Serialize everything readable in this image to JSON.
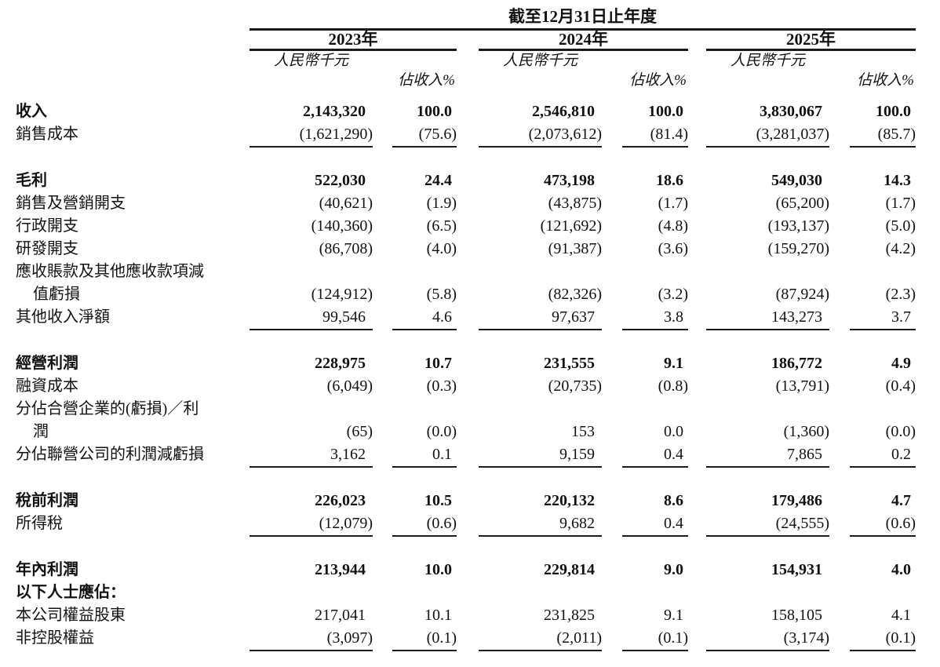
{
  "header": {
    "period_title": "截至12月31日止年度",
    "years": [
      "2023年",
      "2024年",
      "2025年"
    ],
    "col_headers": {
      "amount": "人民幣千元",
      "pct": "佔收入%"
    }
  },
  "colors": {
    "background": "#ffffff",
    "text": "#111111",
    "rule": "#1a1a1a"
  },
  "chart_data": {
    "type": "table",
    "title": "截至12月31日止年度",
    "column_groups": [
      "2023年",
      "2024年",
      "2025年"
    ],
    "columns_per_group": [
      "人民幣千元",
      "佔收入%"
    ]
  },
  "rows": [
    {
      "type": "data",
      "label": "收入",
      "bold": true,
      "indent": false,
      "underline": false,
      "values": [
        "2,143,320",
        "100.0",
        "2,546,810",
        "100.0",
        "3,830,067",
        "100.0"
      ]
    },
    {
      "type": "data",
      "label": "銷售成本",
      "bold": false,
      "indent": false,
      "underline": true,
      "values": [
        "(1,621,290)",
        "(75.6)",
        "(2,073,612)",
        "(81.4)",
        "(3,281,037)",
        "(85.7)"
      ]
    },
    {
      "type": "spacer"
    },
    {
      "type": "data",
      "label": "毛利",
      "bold": true,
      "indent": false,
      "underline": false,
      "values": [
        "522,030",
        "24.4",
        "473,198",
        "18.6",
        "549,030",
        "14.3"
      ]
    },
    {
      "type": "data",
      "label": "銷售及營銷開支",
      "bold": false,
      "indent": false,
      "underline": false,
      "values": [
        "(40,621)",
        "(1.9)",
        "(43,875)",
        "(1.7)",
        "(65,200)",
        "(1.7)"
      ]
    },
    {
      "type": "data",
      "label": "行政開支",
      "bold": false,
      "indent": false,
      "underline": false,
      "values": [
        "(140,360)",
        "(6.5)",
        "(121,692)",
        "(4.8)",
        "(193,137)",
        "(5.0)"
      ]
    },
    {
      "type": "data",
      "label": "研發開支",
      "bold": false,
      "indent": false,
      "underline": false,
      "values": [
        "(86,708)",
        "(4.0)",
        "(91,387)",
        "(3.6)",
        "(159,270)",
        "(4.2)"
      ]
    },
    {
      "type": "data",
      "label": "應收賬款及其他應收款項減",
      "bold": false,
      "indent": false,
      "underline": false,
      "values": null
    },
    {
      "type": "data",
      "label": "值虧損",
      "bold": false,
      "indent": true,
      "underline": false,
      "values": [
        "(124,912)",
        "(5.8)",
        "(82,326)",
        "(3.2)",
        "(87,924)",
        "(2.3)"
      ]
    },
    {
      "type": "data",
      "label": "其他收入淨額",
      "bold": false,
      "indent": false,
      "underline": true,
      "values": [
        "99,546",
        "4.6",
        "97,637",
        "3.8",
        "143,273",
        "3.7"
      ]
    },
    {
      "type": "spacer"
    },
    {
      "type": "data",
      "label": "經營利潤",
      "bold": true,
      "indent": false,
      "underline": false,
      "values": [
        "228,975",
        "10.7",
        "231,555",
        "9.1",
        "186,772",
        "4.9"
      ]
    },
    {
      "type": "data",
      "label": "融資成本",
      "bold": false,
      "indent": false,
      "underline": false,
      "values": [
        "(6,049)",
        "(0.3)",
        "(20,735)",
        "(0.8)",
        "(13,791)",
        "(0.4)"
      ]
    },
    {
      "type": "data",
      "label": "分佔合營企業的(虧損)／利",
      "bold": false,
      "indent": false,
      "underline": false,
      "values": null
    },
    {
      "type": "data",
      "label": "潤",
      "bold": false,
      "indent": true,
      "underline": false,
      "values": [
        "(65)",
        "(0.0)",
        "153",
        "0.0",
        "(1,360)",
        "(0.0)"
      ]
    },
    {
      "type": "data",
      "label": "分佔聯營公司的利潤減虧損",
      "bold": false,
      "indent": false,
      "underline": true,
      "values": [
        "3,162",
        "0.1",
        "9,159",
        "0.4",
        "7,865",
        "0.2"
      ]
    },
    {
      "type": "spacer"
    },
    {
      "type": "data",
      "label": "稅前利潤",
      "bold": true,
      "indent": false,
      "underline": false,
      "values": [
        "226,023",
        "10.5",
        "220,132",
        "8.6",
        "179,486",
        "4.7"
      ]
    },
    {
      "type": "data",
      "label": "所得稅",
      "bold": false,
      "indent": false,
      "underline": true,
      "values": [
        "(12,079)",
        "(0.6)",
        "9,682",
        "0.4",
        "(24,555)",
        "(0.6)"
      ]
    },
    {
      "type": "spacer"
    },
    {
      "type": "data",
      "label": "年內利潤",
      "bold": true,
      "indent": false,
      "underline": false,
      "values": [
        "213,944",
        "10.0",
        "229,814",
        "9.0",
        "154,931",
        "4.0"
      ]
    },
    {
      "type": "data",
      "label": "以下人士應佔：",
      "bold": true,
      "indent": false,
      "underline": false,
      "values": null
    },
    {
      "type": "data",
      "label": "本公司權益股東",
      "bold": false,
      "indent": false,
      "underline": false,
      "values": [
        "217,041",
        "10.1",
        "231,825",
        "9.1",
        "158,105",
        "4.1"
      ]
    },
    {
      "type": "data",
      "label": "非控股權益",
      "bold": false,
      "indent": false,
      "underline": true,
      "values": [
        "(3,097)",
        "(0.1)",
        "(2,011)",
        "(0.1)",
        "(3,174)",
        "(0.1)"
      ]
    }
  ]
}
